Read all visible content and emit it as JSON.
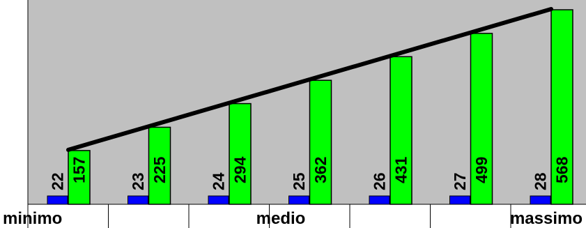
{
  "colors": {
    "plot_background": "#c0c0c0",
    "series_a": "#0000ff",
    "series_b": "#00ff00",
    "trend_line": "#000000",
    "axis": "#000000"
  },
  "chart_data": {
    "type": "bar",
    "categories": [
      "",
      "",
      "",
      "",
      "",
      "",
      ""
    ],
    "category_labels": {
      "left": "minimo",
      "middle": "medio",
      "right": "massimo"
    },
    "series": [
      {
        "values": [
          22,
          23,
          24,
          25,
          26,
          27,
          28
        ]
      },
      {
        "values": [
          157,
          225,
          294,
          362,
          431,
          499,
          568
        ]
      }
    ],
    "trend_line": {
      "from_series": 1,
      "start_value": 157,
      "end_value": 568
    },
    "ylim": [
      0,
      600
    ],
    "grid": false,
    "legend": "none",
    "xlabel": "",
    "ylabel": ""
  }
}
